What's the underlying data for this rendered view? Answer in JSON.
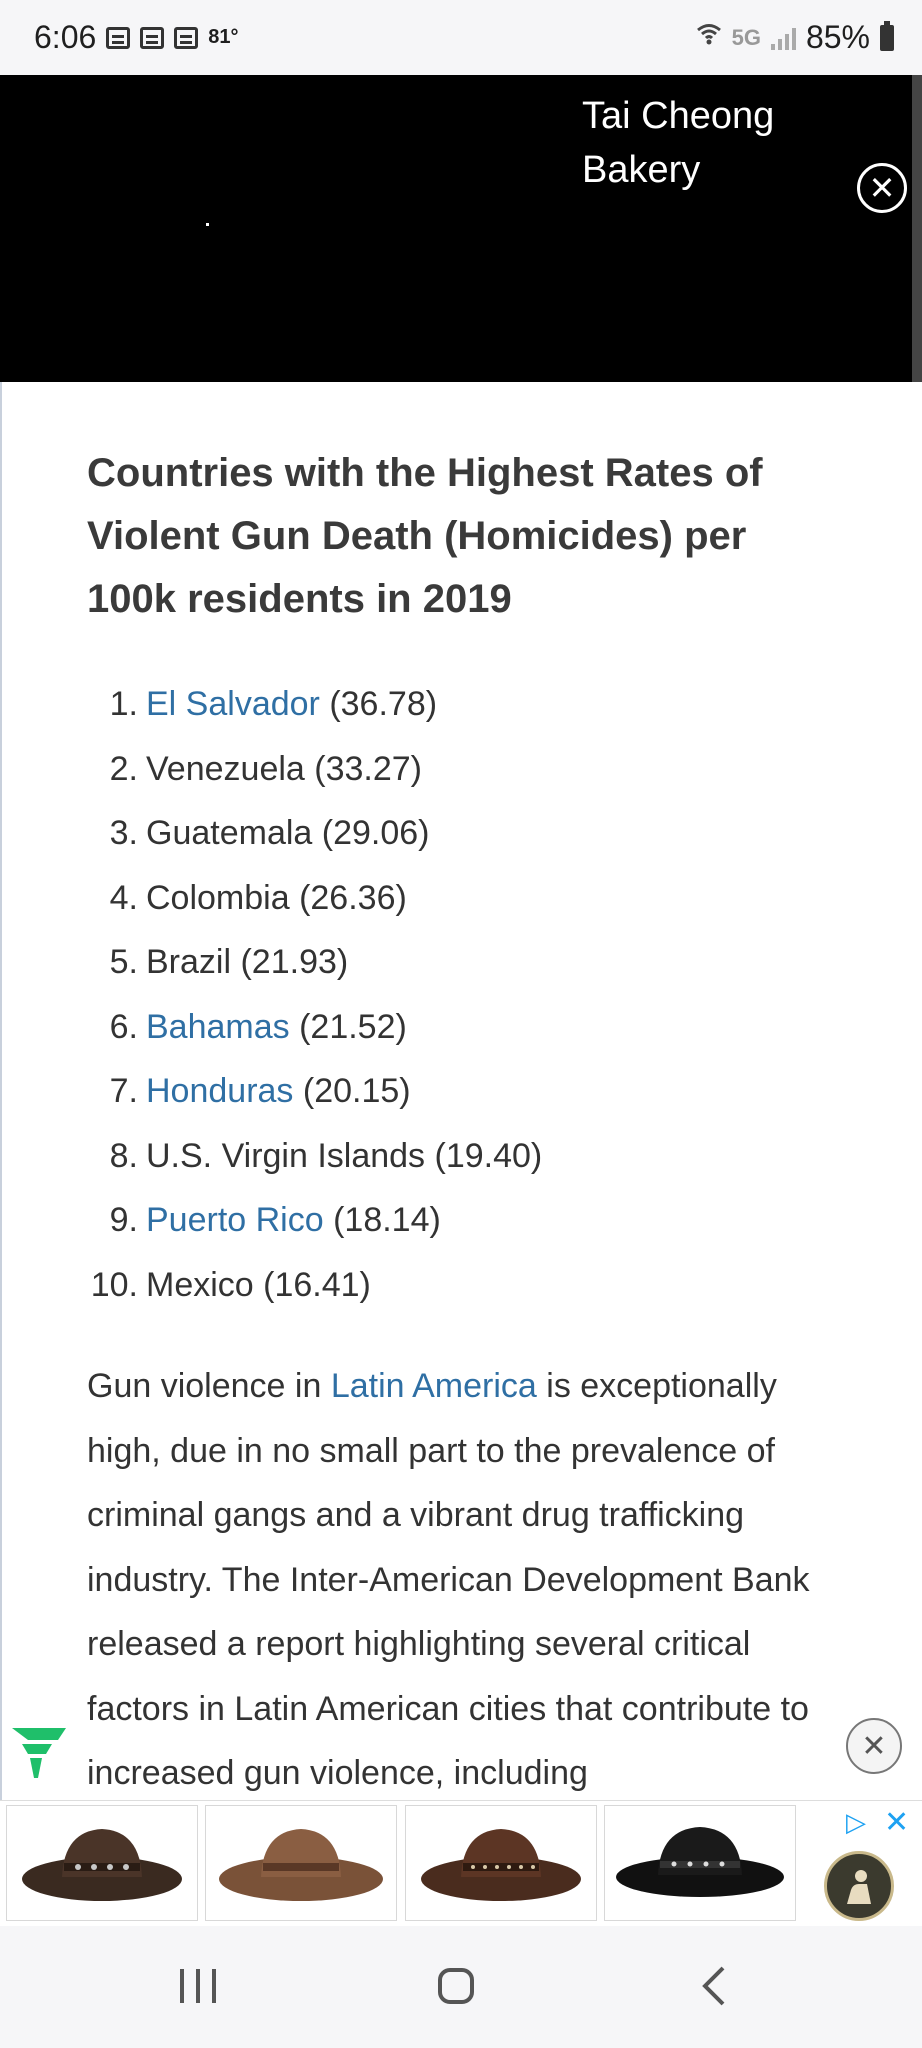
{
  "status_bar": {
    "time": "6:06",
    "temperature": "81°",
    "network": "5G",
    "battery": "85%"
  },
  "video_ad": {
    "title": "Tai Cheong Bakery"
  },
  "article": {
    "heading": "Countries with the Highest Rates of Violent Gun Death (Homicides) per 100k residents in 2019",
    "list": [
      {
        "num": "1.",
        "country": "El Salvador",
        "value": "(36.78)",
        "link": true
      },
      {
        "num": "2.",
        "country": "Venezuela",
        "value": "(33.27)",
        "link": false
      },
      {
        "num": "3.",
        "country": "Guatemala",
        "value": "(29.06)",
        "link": false
      },
      {
        "num": "4.",
        "country": "Colombia",
        "value": "(26.36)",
        "link": false
      },
      {
        "num": "5.",
        "country": "Brazil",
        "value": "(21.93)",
        "link": false
      },
      {
        "num": "6.",
        "country": "Bahamas",
        "value": "(21.52)",
        "link": true
      },
      {
        "num": "7.",
        "country": "Honduras",
        "value": "(20.15)",
        "link": true
      },
      {
        "num": "8.",
        "country": "U.S. Virgin Islands",
        "value": "(19.40)",
        "link": false
      },
      {
        "num": "9.",
        "country": "Puerto Rico",
        "value": "(18.14)",
        "link": true
      },
      {
        "num": "10.",
        "country": "Mexico",
        "value": "(16.41)",
        "link": false
      }
    ],
    "paragraph_before_link": "Gun violence in ",
    "paragraph_link": "Latin America",
    "paragraph_after_link": " is exceptionally high, due in no small part to the prevalence of criminal gangs and a vibrant drug trafficking industry. The Inter-American Development Bank released a report highlighting several critical factors in Latin American cities that contribute to increased gun violence, including"
  },
  "banner_ad": {
    "products": [
      "leather-hat-dark-brown",
      "leather-hat-tan",
      "leather-hat-brown-studded",
      "felt-hat-black"
    ]
  },
  "colors": {
    "link": "#2f6fa4",
    "text": "#333333",
    "adchoice": "#1da1f2",
    "brand_green": "#1fbf6a"
  }
}
